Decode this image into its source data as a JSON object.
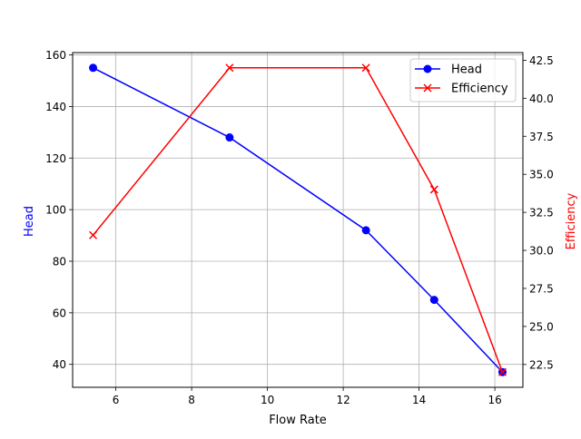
{
  "chart_data": {
    "type": "line",
    "title": "",
    "xlabel": "Flow Rate",
    "ylabel": "Head",
    "ylabel_right": "Efficiency",
    "x": [
      5.4,
      9.0,
      12.6,
      14.4,
      16.2
    ],
    "xlim": [
      4.86,
      16.74
    ],
    "xticks": [
      6,
      8,
      10,
      12,
      14,
      16
    ],
    "ylim": [
      31.1,
      160.9
    ],
    "yticks": [
      40,
      60,
      80,
      100,
      120,
      140,
      160
    ],
    "ylim_right": [
      21.0,
      43.0
    ],
    "yticks_right": [
      22.5,
      25.0,
      27.5,
      30.0,
      32.5,
      35.0,
      37.5,
      40.0,
      42.5
    ],
    "grid": true,
    "legend_position": "upper right",
    "series": [
      {
        "name": "Head",
        "axis": "left",
        "color": "#0000ff",
        "marker": "circle",
        "values": [
          155,
          128,
          92,
          65,
          37
        ]
      },
      {
        "name": "Efficiency",
        "axis": "right",
        "color": "#ff0000",
        "marker": "x",
        "values": [
          31,
          42,
          42,
          34,
          22
        ]
      }
    ]
  },
  "labels": {
    "xlabel": "Flow Rate",
    "ylabel_left": "Head",
    "ylabel_right": "Efficiency",
    "legend": [
      "Head",
      "Efficiency"
    ]
  }
}
